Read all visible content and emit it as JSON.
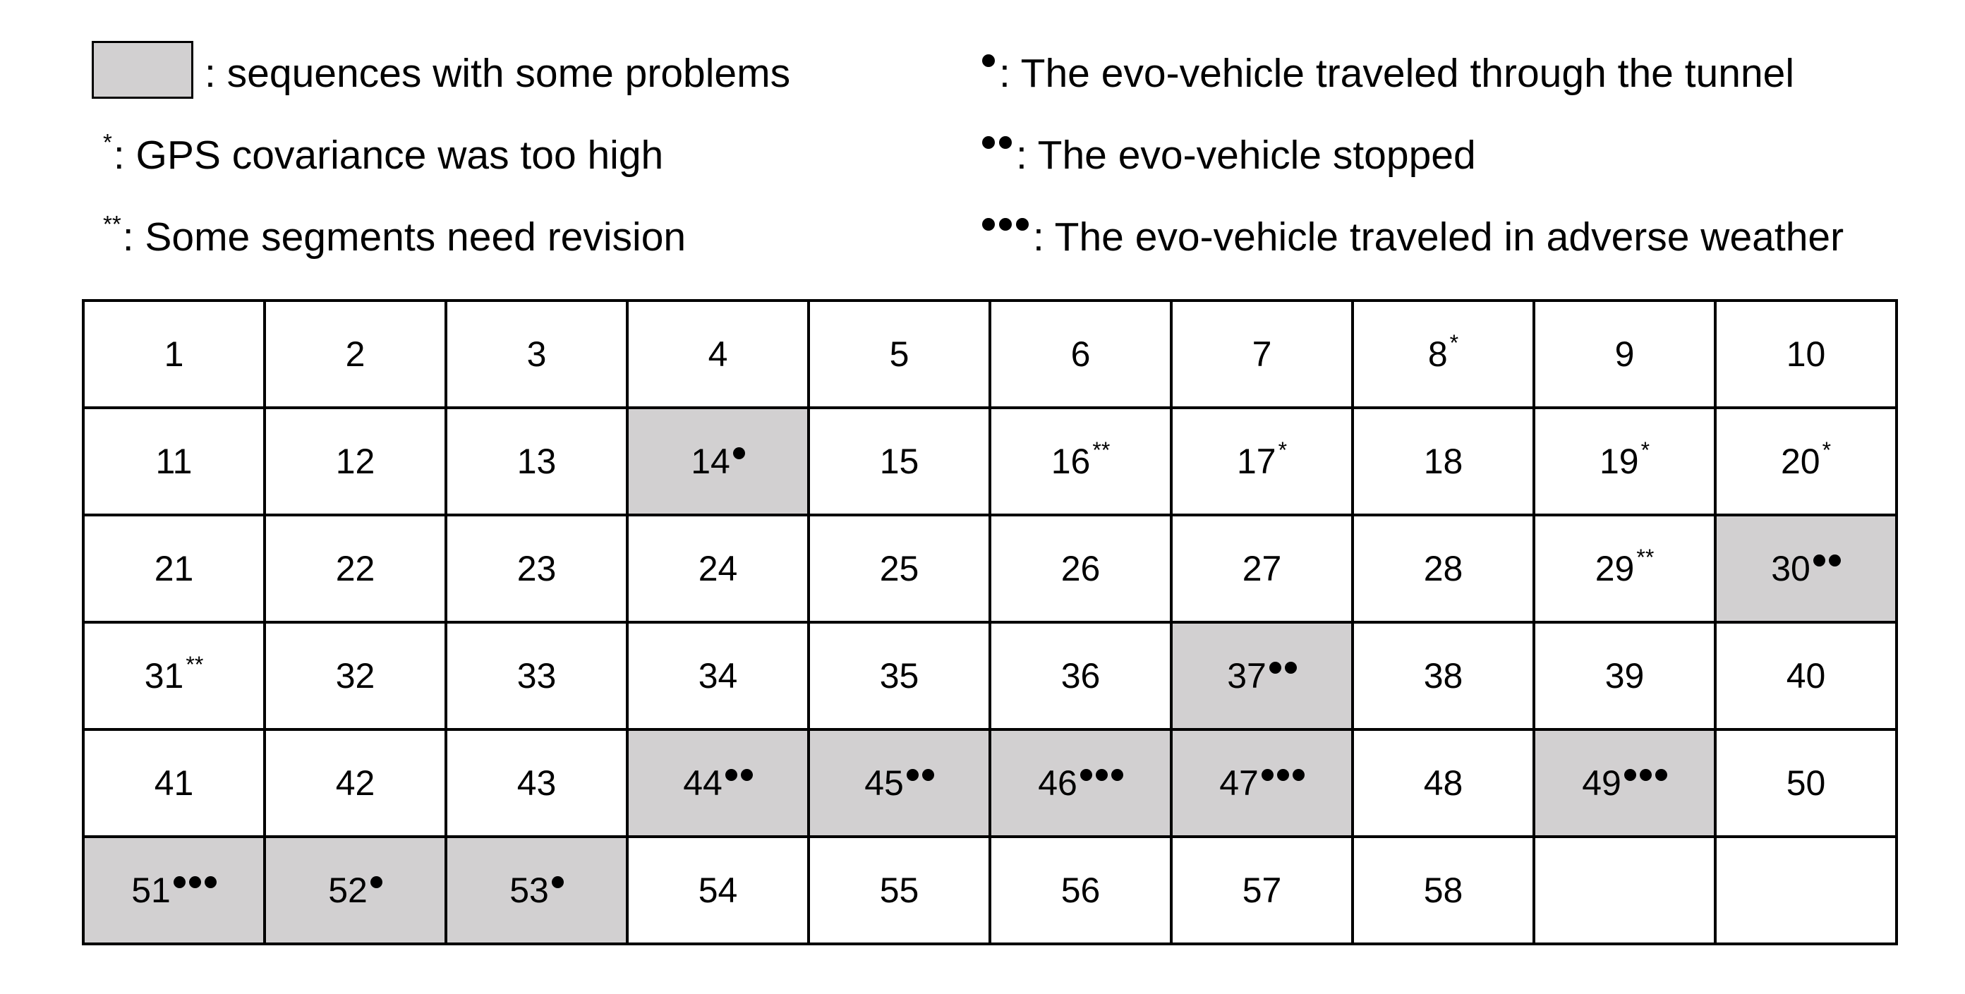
{
  "colors": {
    "problem_fill": "#d2d0d1",
    "normal_fill": "#ffffff",
    "border": "#000000"
  },
  "legend": {
    "problem_swatch": {
      "text": ": sequences with some problems"
    },
    "asterisk_one": {
      "mark": "*",
      "text": ": GPS covariance was too high"
    },
    "asterisk_two": {
      "mark": "**",
      "text": ": Some segments need revision"
    },
    "dot_one": {
      "dots": 1,
      "text": ": The evo-vehicle traveled through the tunnel"
    },
    "dot_two": {
      "dots": 2,
      "text": ": The evo-vehicle stopped"
    },
    "dot_three": {
      "dots": 3,
      "text": ": The evo-vehicle traveled in adverse weather"
    }
  },
  "grid": {
    "rows": [
      [
        {
          "label": "1"
        },
        {
          "label": "2"
        },
        {
          "label": "3"
        },
        {
          "label": "4"
        },
        {
          "label": "5"
        },
        {
          "label": "6"
        },
        {
          "label": "7"
        },
        {
          "label": "8",
          "sup": "*"
        },
        {
          "label": "9"
        },
        {
          "label": "10"
        }
      ],
      [
        {
          "label": "11"
        },
        {
          "label": "12"
        },
        {
          "label": "13"
        },
        {
          "label": "14",
          "dots": 1,
          "problem": true
        },
        {
          "label": "15"
        },
        {
          "label": "16",
          "sup": "**"
        },
        {
          "label": "17",
          "sup": "*"
        },
        {
          "label": "18"
        },
        {
          "label": "19",
          "sup": "*"
        },
        {
          "label": "20",
          "sup": "*"
        }
      ],
      [
        {
          "label": "21"
        },
        {
          "label": "22"
        },
        {
          "label": "23"
        },
        {
          "label": "24"
        },
        {
          "label": "25"
        },
        {
          "label": "26"
        },
        {
          "label": "27"
        },
        {
          "label": "28"
        },
        {
          "label": "29",
          "sup": "**"
        },
        {
          "label": "30",
          "dots": 2,
          "problem": true
        }
      ],
      [
        {
          "label": "31",
          "sup": "**"
        },
        {
          "label": "32"
        },
        {
          "label": "33"
        },
        {
          "label": "34"
        },
        {
          "label": "35"
        },
        {
          "label": "36"
        },
        {
          "label": "37",
          "dots": 2,
          "problem": true
        },
        {
          "label": "38"
        },
        {
          "label": "39"
        },
        {
          "label": "40"
        }
      ],
      [
        {
          "label": "41"
        },
        {
          "label": "42"
        },
        {
          "label": "43"
        },
        {
          "label": "44",
          "dots": 2,
          "problem": true
        },
        {
          "label": "45",
          "dots": 2,
          "problem": true
        },
        {
          "label": "46",
          "dots": 3,
          "problem": true
        },
        {
          "label": "47",
          "dots": 3,
          "problem": true
        },
        {
          "label": "48"
        },
        {
          "label": "49",
          "dots": 3,
          "problem": true
        },
        {
          "label": "50"
        }
      ],
      [
        {
          "label": "51",
          "dots": 3,
          "problem": true
        },
        {
          "label": "52",
          "dots": 1,
          "problem": true
        },
        {
          "label": "53",
          "dots": 1,
          "problem": true
        },
        {
          "label": "54"
        },
        {
          "label": "55"
        },
        {
          "label": "56"
        },
        {
          "label": "57"
        },
        {
          "label": "58"
        },
        {
          "label": ""
        },
        {
          "label": ""
        }
      ]
    ]
  }
}
